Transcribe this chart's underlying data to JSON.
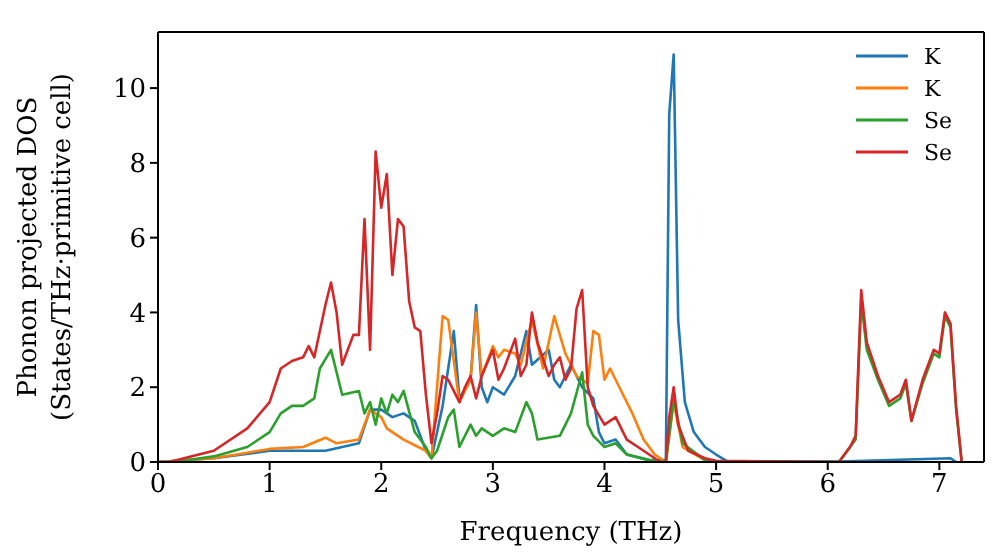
{
  "chart_data": {
    "type": "line",
    "xlabel": "Frequency (THz)",
    "ylabel": "Phonon projected DOS\n(States/THz·primitive cell)",
    "xlim": [
      0,
      7.4
    ],
    "ylim": [
      0,
      11.5
    ],
    "xticks": [
      0,
      1,
      2,
      3,
      4,
      5,
      6,
      7
    ],
    "yticks": [
      0,
      2,
      4,
      6,
      8,
      10
    ],
    "grid": false,
    "legend": "top right",
    "marker": "none",
    "line_style": "solid",
    "series": [
      {
        "name": "K",
        "color": "#1f77b4",
        "x": [
          0,
          0.5,
          1.0,
          1.5,
          1.8,
          1.9,
          2.0,
          2.1,
          2.2,
          2.3,
          2.4,
          2.45,
          2.55,
          2.6,
          2.65,
          2.7,
          2.8,
          2.85,
          2.9,
          2.95,
          3.0,
          3.1,
          3.2,
          3.3,
          3.35,
          3.5,
          3.55,
          3.6,
          3.7,
          3.8,
          3.9,
          3.95,
          4.0,
          4.1,
          4.2,
          4.4,
          4.55,
          4.58,
          4.62,
          4.66,
          4.72,
          4.8,
          4.9,
          5.0,
          5.1,
          6.1,
          7.1,
          7.15
        ],
        "values": [
          0,
          0.1,
          0.3,
          0.3,
          0.5,
          1.4,
          1.4,
          1.2,
          1.3,
          1.1,
          0.3,
          0.1,
          1.5,
          2.5,
          3.5,
          1.7,
          2.2,
          4.2,
          2.0,
          1.6,
          2.0,
          1.8,
          2.3,
          3.5,
          2.6,
          3.0,
          2.2,
          2.0,
          2.6,
          2.0,
          1.7,
          0.8,
          0.5,
          0.6,
          0.2,
          0.05,
          0.05,
          9.3,
          10.9,
          3.8,
          1.6,
          0.8,
          0.4,
          0.2,
          0.02,
          0.01,
          0.1,
          0
        ]
      },
      {
        "name": "K",
        "color": "#ff7f0e",
        "x": [
          0,
          0.5,
          1.0,
          1.3,
          1.5,
          1.6,
          1.8,
          1.9,
          2.0,
          2.05,
          2.2,
          2.4,
          2.45,
          2.55,
          2.6,
          2.7,
          2.8,
          2.85,
          2.9,
          3.0,
          3.05,
          3.1,
          3.2,
          3.25,
          3.35,
          3.45,
          3.55,
          3.65,
          3.75,
          3.85,
          3.9,
          3.95,
          4.0,
          4.05,
          4.15,
          4.25,
          4.35,
          4.45,
          4.55,
          4.62,
          4.7,
          4.9,
          5.0
        ],
        "values": [
          0,
          0.1,
          0.35,
          0.4,
          0.65,
          0.5,
          0.6,
          1.4,
          1.2,
          0.9,
          0.6,
          0.3,
          0.1,
          3.9,
          3.8,
          1.6,
          2.2,
          4.0,
          2.3,
          3.1,
          2.8,
          3.0,
          2.9,
          2.6,
          3.8,
          2.5,
          3.9,
          2.9,
          2.3,
          2.1,
          3.5,
          3.4,
          2.2,
          2.5,
          1.9,
          1.3,
          0.6,
          0.2,
          0,
          1.6,
          0.4,
          0.05,
          0
        ]
      },
      {
        "name": "Se",
        "color": "#2ca02c",
        "x": [
          0,
          0.15,
          0.5,
          0.8,
          1.0,
          1.1,
          1.2,
          1.3,
          1.4,
          1.45,
          1.55,
          1.65,
          1.8,
          1.85,
          1.9,
          1.95,
          2.0,
          2.05,
          2.1,
          2.15,
          2.2,
          2.3,
          2.4,
          2.45,
          2.5,
          2.6,
          2.65,
          2.7,
          2.8,
          2.85,
          2.9,
          3.0,
          3.1,
          3.2,
          3.3,
          3.35,
          3.4,
          3.6,
          3.7,
          3.8,
          3.85,
          3.9,
          4.0,
          4.1,
          4.2,
          4.4,
          4.55,
          4.62,
          4.7,
          4.9,
          5.0,
          6.1,
          6.2,
          6.25,
          6.3,
          6.35,
          6.45,
          6.55,
          6.65,
          6.7,
          6.75,
          6.85,
          6.95,
          7.0,
          7.05,
          7.1,
          7.15,
          7.2
        ],
        "values": [
          0,
          0,
          0.15,
          0.4,
          0.8,
          1.3,
          1.5,
          1.5,
          1.7,
          2.5,
          3.0,
          1.8,
          1.9,
          1.3,
          1.6,
          1.0,
          1.7,
          1.3,
          1.8,
          1.6,
          1.9,
          0.8,
          0.4,
          0.1,
          0.3,
          1.2,
          1.4,
          0.4,
          1.0,
          0.7,
          0.9,
          0.7,
          0.9,
          0.8,
          1.6,
          1.3,
          0.6,
          0.7,
          1.3,
          2.4,
          1.0,
          0.7,
          0.4,
          0.5,
          0.2,
          0.05,
          0,
          1.7,
          0.5,
          0.05,
          0,
          0,
          0.4,
          0.6,
          4.3,
          3.0,
          2.2,
          1.5,
          1.7,
          2.1,
          1.1,
          2.1,
          2.9,
          2.8,
          3.9,
          3.6,
          1.4,
          0
        ]
      },
      {
        "name": "Se",
        "color": "#d62728",
        "x": [
          0,
          0.1,
          0.5,
          0.8,
          1.0,
          1.1,
          1.2,
          1.3,
          1.35,
          1.4,
          1.5,
          1.55,
          1.6,
          1.65,
          1.75,
          1.8,
          1.85,
          1.9,
          1.95,
          2.0,
          2.05,
          2.1,
          2.15,
          2.2,
          2.25,
          2.3,
          2.35,
          2.4,
          2.45,
          2.5,
          2.55,
          2.6,
          2.7,
          2.75,
          2.8,
          2.85,
          2.9,
          3.0,
          3.05,
          3.1,
          3.2,
          3.25,
          3.3,
          3.35,
          3.4,
          3.5,
          3.55,
          3.6,
          3.65,
          3.7,
          3.75,
          3.8,
          3.85,
          3.9,
          4.0,
          4.1,
          4.2,
          4.3,
          4.45,
          4.5,
          4.55,
          4.58,
          4.62,
          4.66,
          4.75,
          4.9,
          5.0,
          6.1,
          6.2,
          6.25,
          6.3,
          6.35,
          6.45,
          6.55,
          6.65,
          6.7,
          6.75,
          6.85,
          6.95,
          7.0,
          7.05,
          7.1,
          7.15,
          7.2
        ],
        "values": [
          0,
          0,
          0.3,
          0.9,
          1.6,
          2.5,
          2.7,
          2.8,
          3.1,
          2.8,
          4.2,
          4.8,
          4.0,
          2.6,
          3.4,
          3.4,
          6.5,
          3.0,
          8.3,
          6.8,
          7.7,
          5.0,
          6.5,
          6.3,
          4.3,
          3.6,
          3.5,
          1.8,
          0.5,
          1.3,
          2.3,
          2.2,
          1.6,
          2.0,
          2.3,
          1.7,
          2.3,
          3.0,
          2.2,
          2.5,
          3.3,
          2.3,
          2.6,
          4.0,
          3.2,
          2.3,
          2.6,
          2.8,
          2.2,
          2.5,
          4.1,
          4.6,
          2.0,
          1.5,
          1.0,
          1.2,
          0.6,
          0.4,
          0.1,
          0,
          0,
          1.2,
          2.0,
          1.0,
          0.3,
          0.1,
          0.03,
          0,
          0.4,
          0.7,
          4.6,
          3.2,
          2.3,
          1.6,
          1.8,
          2.2,
          1.1,
          2.2,
          3.0,
          2.9,
          4.0,
          3.7,
          1.5,
          0
        ]
      }
    ]
  }
}
